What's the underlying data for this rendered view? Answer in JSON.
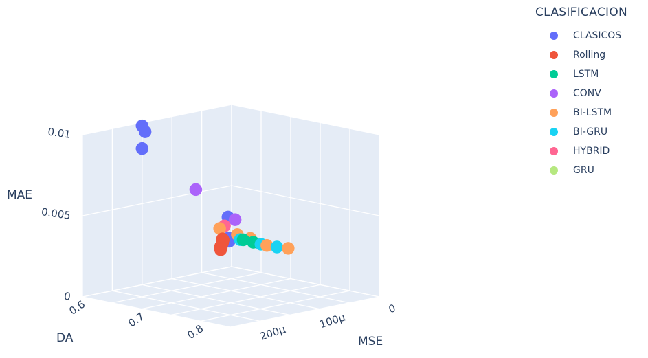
{
  "chart_data": {
    "type": "scatter",
    "dimensions": 3,
    "legend_title": "CLASIFICACION",
    "legend_position": "top-right",
    "axes": {
      "x": {
        "label": "MSE",
        "range": [
          0,
          0.00025
        ],
        "tick_values": [
          0,
          0.0001,
          0.0002
        ],
        "tick_labels": [
          "0",
          "100μ",
          "200μ"
        ]
      },
      "y": {
        "label": "DA",
        "range": [
          0.6,
          0.85
        ],
        "tick_values": [
          0.6,
          0.7,
          0.8
        ],
        "tick_labels": [
          "0.6",
          "0.7",
          "0.8"
        ]
      },
      "z": {
        "label": "MAE",
        "range": [
          0,
          0.01
        ],
        "tick_values": [
          0,
          0.005,
          0.01
        ],
        "tick_labels": [
          "0",
          "0.005",
          "0.01"
        ]
      }
    },
    "grid": true,
    "series": [
      {
        "name": "CLASICOS",
        "color": "#636efa",
        "points": [
          [
            0.00015,
            0.6,
            0.0098
          ],
          [
            0.000145,
            0.6,
            0.0094
          ],
          [
            0.00015,
            0.6,
            0.0084
          ],
          [
            6e-06,
            0.6,
            0.0031
          ],
          [
            5e-06,
            0.6,
            0.0018
          ],
          [
            4e-06,
            0.6,
            0.0016
          ]
        ]
      },
      {
        "name": "Rolling",
        "color": "#ef553b",
        "points": [
          [
            2e-05,
            0.605,
            0.0019
          ],
          [
            2.4e-05,
            0.61,
            0.0019
          ],
          [
            3e-05,
            0.615,
            0.0018
          ],
          [
            3.6e-05,
            0.62,
            0.0018
          ],
          [
            4.2e-05,
            0.625,
            0.0017
          ],
          [
            4.8e-05,
            0.63,
            0.0017
          ],
          [
            5.3e-05,
            0.635,
            0.0017
          ],
          [
            4.6e-05,
            0.628,
            0.0018
          ]
        ]
      },
      {
        "name": "LSTM",
        "color": "#00cc96",
        "points": [
          [
            4e-05,
            0.66,
            0.0024
          ],
          [
            3.5e-05,
            0.672,
            0.0023
          ]
        ]
      },
      {
        "name": "CONV",
        "color": "#ab63fa",
        "points": [
          [
            6e-05,
            0.6,
            0.0052
          ],
          [
            4e-06,
            0.61,
            0.003
          ]
        ]
      },
      {
        "name": "BI-LSTM",
        "color": "#ffa15a",
        "points": [
          [
            2e-05,
            0.6,
            0.0025
          ],
          [
            3e-05,
            0.64,
            0.0025
          ],
          [
            2.8e-05,
            0.66,
            0.0024
          ],
          [
            3e-05,
            0.69,
            0.0022
          ],
          [
            2.4e-05,
            0.72,
            0.0022
          ]
        ]
      },
      {
        "name": "BI-GRU",
        "color": "#19d3f3",
        "points": [
          [
            3.5e-05,
            0.65,
            0.0023
          ],
          [
            3e-05,
            0.68,
            0.0022
          ],
          [
            2.8e-05,
            0.705,
            0.0022
          ]
        ]
      },
      {
        "name": "HYBRID",
        "color": "#ff6692",
        "points": [
          [
            1.2e-05,
            0.6,
            0.0026
          ]
        ]
      },
      {
        "name": "GRU",
        "color": "#b6e880",
        "points": []
      }
    ]
  }
}
